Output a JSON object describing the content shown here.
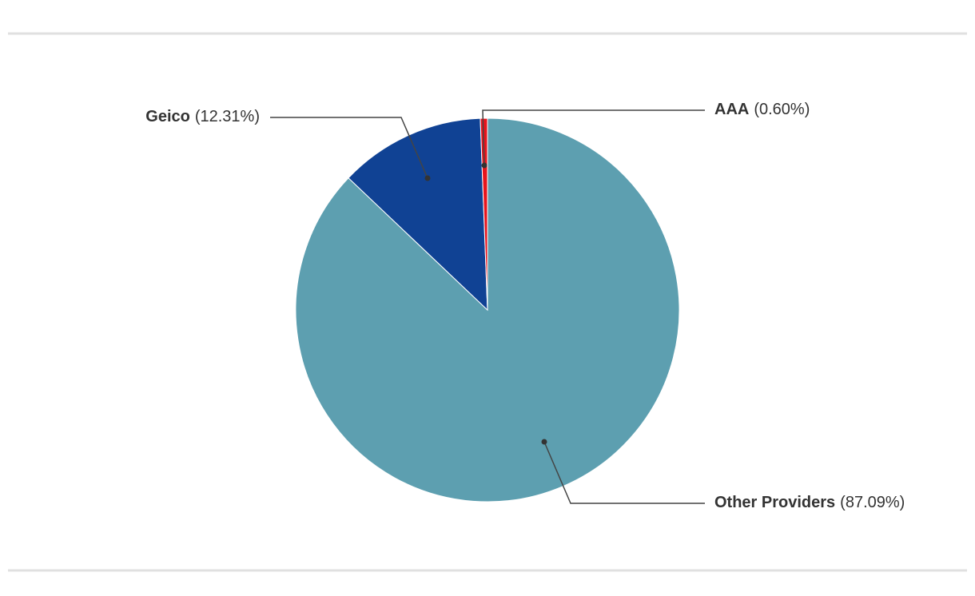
{
  "chart_data": {
    "type": "pie",
    "categories": [
      "Other Providers",
      "Geico",
      "AAA"
    ],
    "values": [
      87.09,
      12.31,
      0.6
    ],
    "value_labels": [
      "(87.09%)",
      "(12.31%)",
      "(0.60%)"
    ],
    "colors": [
      "#5d9fb0",
      "#104294",
      "#e8141c"
    ]
  }
}
